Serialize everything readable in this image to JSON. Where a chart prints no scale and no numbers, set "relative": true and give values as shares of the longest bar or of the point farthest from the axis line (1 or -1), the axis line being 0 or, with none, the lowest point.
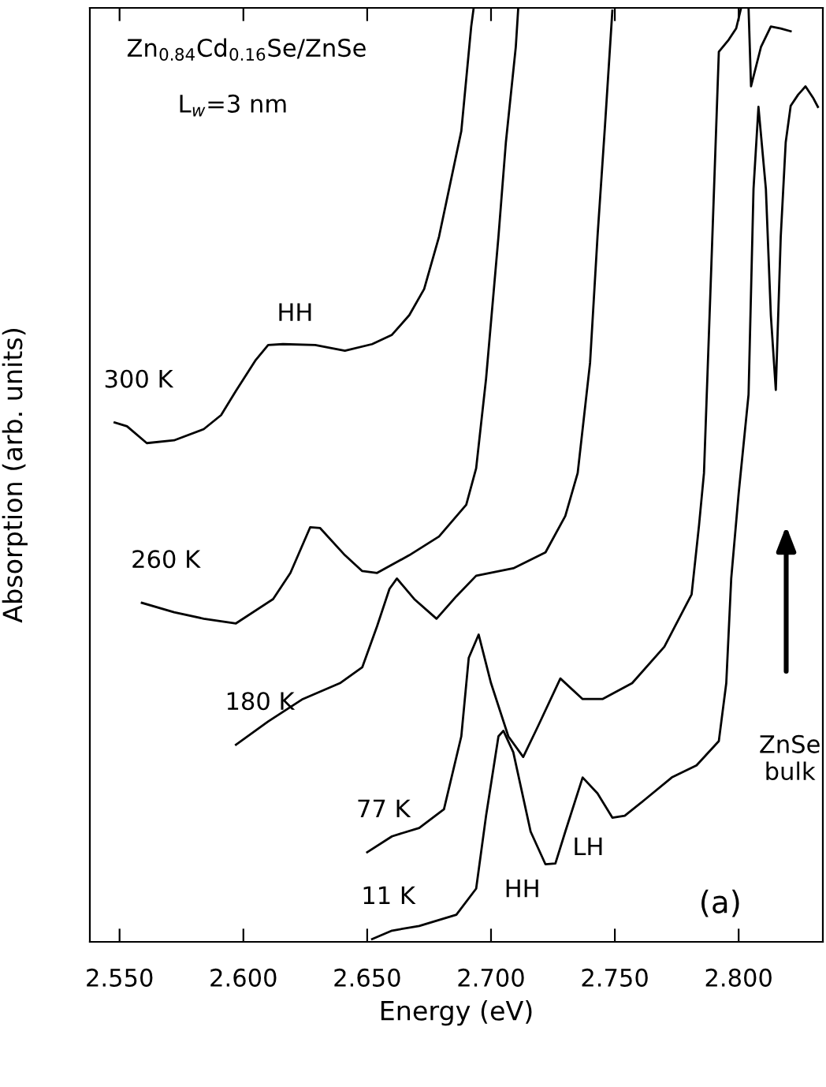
{
  "chart_data": {
    "type": "line",
    "xlabel": "Energy (eV)",
    "ylabel": "Absorption (arb. units)",
    "relative": true,
    "xlim": [
      2.538,
      2.834
    ],
    "xticks": [
      {
        "value": 2.55,
        "label": "2.550"
      },
      {
        "value": 2.6,
        "label": "2.600"
      },
      {
        "value": 2.65,
        "label": "2.650"
      },
      {
        "value": 2.7,
        "label": "2.700"
      },
      {
        "value": 2.75,
        "label": "2.750"
      },
      {
        "value": 2.8,
        "label": "2.800"
      }
    ],
    "grid": false,
    "legend": false,
    "marker": "none",
    "line_style": "solid",
    "series": [
      {
        "name": "300 K",
        "color": "#000000",
        "x": [
          2.548,
          2.553,
          2.561,
          2.572,
          2.584,
          2.591,
          2.597,
          2.605,
          2.61,
          2.616,
          2.629,
          2.641,
          2.652,
          2.66,
          2.667,
          2.673,
          2.679,
          2.688,
          2.692,
          2.693
        ],
        "values": [
          0.556,
          0.552,
          0.534,
          0.537,
          0.549,
          0.564,
          0.59,
          0.623,
          0.639,
          0.64,
          0.639,
          0.633,
          0.64,
          0.65,
          0.671,
          0.699,
          0.755,
          0.868,
          0.98,
          1.0
        ]
      },
      {
        "name": "260 K",
        "color": "#000000",
        "x": [
          2.559,
          2.572,
          2.584,
          2.597,
          2.612,
          2.619,
          2.627,
          2.631,
          2.641,
          2.648,
          2.654,
          2.667,
          2.679,
          2.69,
          2.694,
          2.698,
          2.703,
          2.706,
          2.71,
          2.711
        ],
        "values": [
          0.363,
          0.353,
          0.346,
          0.341,
          0.367,
          0.395,
          0.444,
          0.443,
          0.414,
          0.397,
          0.395,
          0.414,
          0.434,
          0.468,
          0.507,
          0.603,
          0.755,
          0.856,
          0.958,
          1.0
        ]
      },
      {
        "name": "180 K",
        "color": "#000000",
        "x": [
          2.597,
          2.61,
          2.624,
          2.639,
          2.648,
          2.654,
          2.659,
          2.662,
          2.669,
          2.678,
          2.686,
          2.694,
          2.709,
          2.722,
          2.73,
          2.735,
          2.74,
          2.743,
          2.746,
          2.749
        ],
        "values": [
          0.211,
          0.236,
          0.26,
          0.277,
          0.294,
          0.338,
          0.378,
          0.389,
          0.367,
          0.346,
          0.37,
          0.392,
          0.4,
          0.417,
          0.456,
          0.502,
          0.62,
          0.755,
          0.873,
          0.997
        ]
      },
      {
        "name": "77 K",
        "color": "#000000",
        "x": [
          2.65,
          2.66,
          2.671,
          2.681,
          2.688,
          2.691,
          2.695,
          2.7,
          2.707,
          2.713,
          2.719,
          2.728,
          2.737,
          2.745,
          2.757,
          2.77,
          2.781,
          2.784,
          2.786,
          2.789,
          2.792,
          2.796,
          2.799,
          2.801,
          2.802,
          2.804,
          2.805,
          2.809,
          2.813,
          2.817,
          2.821
        ],
        "values": [
          0.096,
          0.113,
          0.122,
          0.142,
          0.22,
          0.304,
          0.329,
          0.277,
          0.22,
          0.198,
          0.231,
          0.282,
          0.26,
          0.26,
          0.277,
          0.316,
          0.372,
          0.446,
          0.502,
          0.726,
          0.953,
          0.966,
          0.978,
          1.0,
          null,
          1.0,
          0.916,
          0.958,
          0.98,
          0.978,
          0.975
        ]
      },
      {
        "name": "11 K",
        "color": "#000000",
        "x": [
          2.652,
          2.66,
          2.671,
          2.686,
          2.694,
          2.698,
          2.703,
          2.705,
          2.709,
          2.716,
          2.722,
          2.726,
          2.73,
          2.737,
          2.743,
          2.749,
          2.754,
          2.762,
          2.773,
          2.783,
          2.792,
          2.795,
          2.797,
          2.8,
          2.804,
          2.806,
          2.808,
          2.811,
          2.813,
          2.815,
          2.817,
          2.819,
          2.821,
          2.824,
          2.827,
          2.83,
          2.832
        ],
        "values": [
          0.003,
          0.012,
          0.017,
          0.029,
          0.057,
          0.135,
          0.22,
          0.226,
          0.203,
          0.118,
          0.083,
          0.084,
          0.118,
          0.176,
          0.159,
          0.133,
          0.135,
          0.152,
          0.176,
          0.189,
          0.215,
          0.277,
          0.389,
          0.48,
          0.586,
          0.806,
          0.894,
          0.806,
          0.671,
          0.591,
          0.755,
          0.856,
          0.895,
          0.907,
          0.916,
          0.904,
          0.894
        ]
      }
    ],
    "annotations": [
      "Zn$_{0.84}$Cd$_{0.16}$Se/ZnSe",
      "L$_{w}$=3 nm",
      "(a)",
      "HH",
      "HH",
      "LH",
      "ZnSe\nbulk"
    ]
  }
}
